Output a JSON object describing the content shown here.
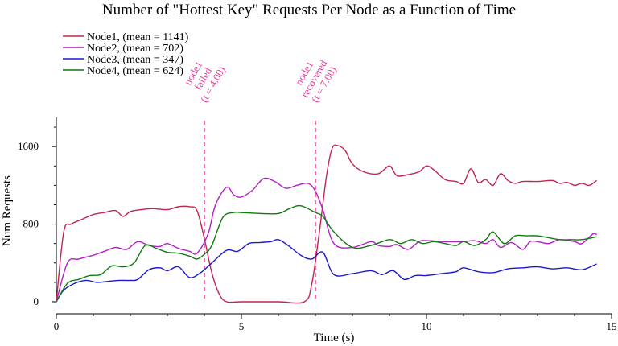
{
  "chart_data": {
    "type": "line",
    "title": "Number of \"Hottest Key\" Requests Per Node as a Function of Time",
    "xlabel": "Time (s)",
    "ylabel": "Num Requests",
    "xlim": [
      0,
      15
    ],
    "ylim": [
      0,
      1900
    ],
    "xticks": [
      0,
      5,
      10,
      15
    ],
    "yticks": [
      0,
      800,
      1600
    ],
    "grid": false,
    "legend_position": "top-left",
    "series": [
      {
        "name": "Node1, (mean = 1141)",
        "color": "#c0264e",
        "x": [
          0,
          0.2,
          0.4,
          0.7,
          1.0,
          1.3,
          1.6,
          1.8,
          2.0,
          2.3,
          2.6,
          3.0,
          3.3,
          3.6,
          3.8,
          4.0,
          4.2,
          4.4,
          4.6,
          5.0,
          6.0,
          6.7,
          6.9,
          7.1,
          7.3,
          7.45,
          7.6,
          7.8,
          8.0,
          8.3,
          8.7,
          9.0,
          9.2,
          9.5,
          9.8,
          10.0,
          10.2,
          10.5,
          10.8,
          11.0,
          11.2,
          11.4,
          11.6,
          11.8,
          12.0,
          12.2,
          12.4,
          12.6,
          13.0,
          13.4,
          13.6,
          13.8,
          14.0,
          14.2,
          14.4,
          14.6
        ],
        "y": [
          0,
          720,
          800,
          850,
          900,
          920,
          940,
          880,
          930,
          950,
          960,
          950,
          980,
          980,
          940,
          650,
          300,
          80,
          0,
          0,
          0,
          0,
          180,
          700,
          1300,
          1580,
          1610,
          1560,
          1420,
          1340,
          1320,
          1400,
          1300,
          1310,
          1340,
          1400,
          1360,
          1260,
          1240,
          1220,
          1370,
          1230,
          1260,
          1200,
          1320,
          1250,
          1220,
          1240,
          1240,
          1250,
          1220,
          1230,
          1200,
          1220,
          1200,
          1250
        ]
      },
      {
        "name": "Node2, (mean = 702)",
        "color": "#b21fc4",
        "x": [
          0,
          0.3,
          0.6,
          1.0,
          1.3,
          1.6,
          1.9,
          2.2,
          2.5,
          2.8,
          3.0,
          3.3,
          3.6,
          3.8,
          4.1,
          4.3,
          4.6,
          4.8,
          5.0,
          5.3,
          5.6,
          5.9,
          6.2,
          6.5,
          6.8,
          7.0,
          7.2,
          7.5,
          8.0,
          8.5,
          8.7,
          9.0,
          9.2,
          9.5,
          9.8,
          10.0,
          10.5,
          11.0,
          11.3,
          11.6,
          11.8,
          12.0,
          12.3,
          12.6,
          12.8,
          13.0,
          13.3,
          13.6,
          14.0,
          14.2,
          14.5,
          14.6
        ],
        "y": [
          0,
          400,
          440,
          480,
          520,
          560,
          540,
          620,
          580,
          570,
          600,
          550,
          520,
          500,
          700,
          1000,
          1180,
          1100,
          1080,
          1150,
          1270,
          1240,
          1170,
          1200,
          1220,
          1140,
          950,
          600,
          560,
          620,
          580,
          570,
          590,
          540,
          620,
          630,
          620,
          620,
          630,
          600,
          640,
          560,
          610,
          540,
          620,
          620,
          600,
          640,
          620,
          600,
          700,
          690
        ]
      },
      {
        "name": "Node3, (mean = 347)",
        "color": "#1a1acc",
        "x": [
          0,
          0.2,
          0.5,
          0.8,
          1.1,
          1.4,
          1.7,
          2.0,
          2.2,
          2.5,
          2.8,
          3.0,
          3.3,
          3.6,
          3.9,
          4.2,
          4.6,
          4.9,
          5.2,
          5.5,
          5.8,
          6.0,
          6.3,
          6.6,
          6.9,
          7.2,
          7.5,
          8.0,
          8.5,
          8.8,
          9.1,
          9.4,
          9.7,
          10.0,
          10.4,
          10.8,
          11.0,
          11.4,
          11.8,
          12.2,
          12.6,
          13.0,
          13.4,
          13.8,
          14.2,
          14.6
        ],
        "y": [
          0,
          120,
          190,
          220,
          200,
          210,
          220,
          220,
          230,
          330,
          350,
          320,
          360,
          250,
          300,
          400,
          530,
          520,
          600,
          610,
          620,
          640,
          570,
          480,
          440,
          510,
          280,
          290,
          320,
          280,
          320,
          230,
          270,
          270,
          290,
          310,
          350,
          310,
          300,
          340,
          350,
          360,
          340,
          350,
          330,
          390
        ]
      },
      {
        "name": "Node4, (mean = 624)",
        "color": "#117a11",
        "x": [
          0,
          0.3,
          0.6,
          0.9,
          1.2,
          1.5,
          1.8,
          2.1,
          2.4,
          2.7,
          3.0,
          3.3,
          3.6,
          3.8,
          4.0,
          4.2,
          4.5,
          4.8,
          5.0,
          5.5,
          6.0,
          6.3,
          6.6,
          7.0,
          7.2,
          7.5,
          8.0,
          8.5,
          9.0,
          9.3,
          9.6,
          9.9,
          10.2,
          10.5,
          10.8,
          11.0,
          11.3,
          11.6,
          11.8,
          12.1,
          12.4,
          12.7,
          13.0,
          13.3,
          13.6,
          13.9,
          14.2,
          14.6
        ],
        "y": [
          0,
          190,
          230,
          270,
          280,
          370,
          360,
          400,
          580,
          550,
          510,
          500,
          470,
          440,
          490,
          580,
          870,
          920,
          920,
          910,
          910,
          960,
          990,
          920,
          880,
          720,
          560,
          580,
          640,
          600,
          640,
          600,
          620,
          600,
          580,
          620,
          580,
          640,
          720,
          600,
          680,
          680,
          680,
          660,
          640,
          640,
          640,
          670
        ]
      }
    ],
    "annotations": [
      {
        "x": 4.0,
        "lines": [
          "node1",
          "failed",
          "(t = 4.00)"
        ],
        "color": "#e8409a"
      },
      {
        "x": 7.0,
        "lines": [
          "node1",
          "recovered",
          "(t = 7.00)"
        ],
        "color": "#e8409a"
      }
    ]
  }
}
